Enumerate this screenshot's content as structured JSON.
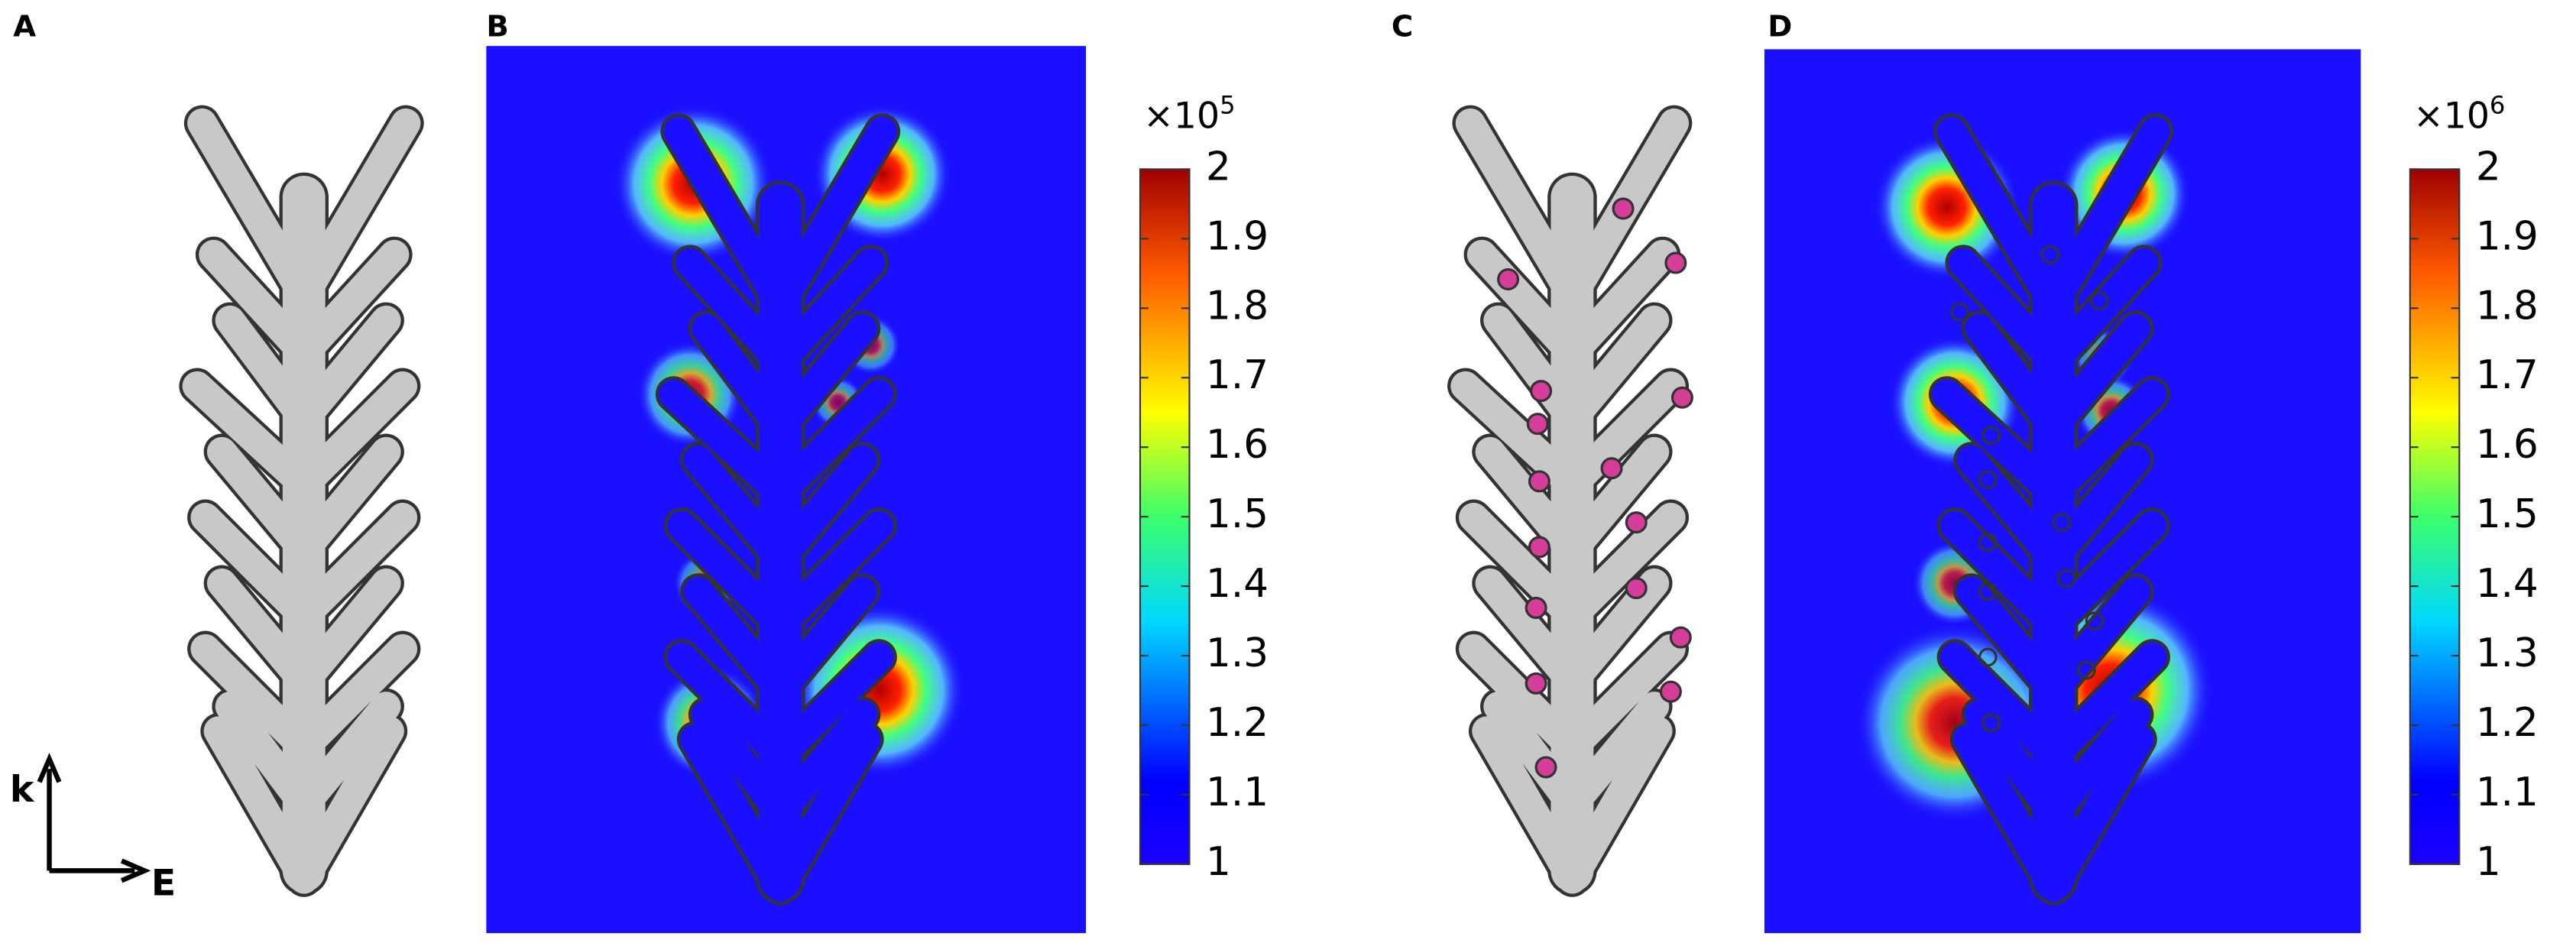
{
  "panels": {
    "a": "A",
    "b": "B",
    "c": "C",
    "d": "D"
  },
  "axes": {
    "k": "k",
    "e": "E"
  },
  "colorbars": [
    {
      "multiplier": "×10",
      "exponent": "5",
      "ticks": [
        "1",
        "1.1",
        "1.2",
        "1.3",
        "1.4",
        "1.5",
        "1.6",
        "1.7",
        "1.8",
        "1.9",
        "2"
      ]
    },
    {
      "multiplier": "×10",
      "exponent": "6",
      "ticks": [
        "1",
        "1.1",
        "1.2",
        "1.3",
        "1.4",
        "1.5",
        "1.6",
        "1.7",
        "1.8",
        "1.9",
        "2"
      ]
    }
  ]
}
